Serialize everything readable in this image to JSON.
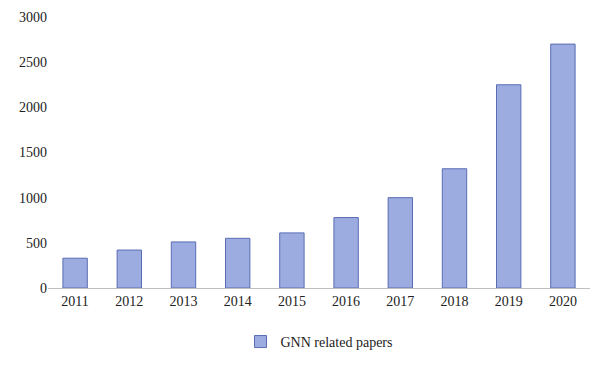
{
  "chart_data": {
    "type": "bar",
    "categories": [
      "2011",
      "2012",
      "2013",
      "2014",
      "2015",
      "2016",
      "2017",
      "2018",
      "2019",
      "2020"
    ],
    "series": [
      {
        "name": "GNN related papers",
        "color": "#9cabe0",
        "values": [
          330,
          420,
          510,
          550,
          610,
          780,
          1000,
          1320,
          2250,
          2700
        ]
      }
    ],
    "ylim": [
      0,
      3000
    ],
    "yticks": [
      0,
      500,
      1000,
      1500,
      2000,
      2500,
      3000
    ],
    "grid": false,
    "legend": "bottom"
  }
}
